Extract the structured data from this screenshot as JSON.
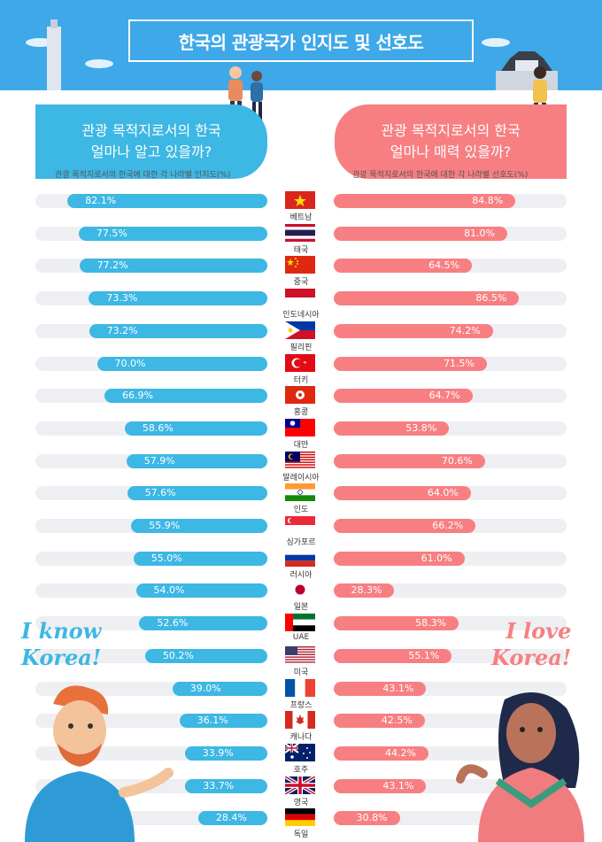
{
  "title": "한국의 관광국가 인지도 및 선호도",
  "left_panel": {
    "heading_line1": "관광 목적지로서의 한국",
    "heading_line2": "얼마나 알고 있을까?",
    "caption": "관광 목적지로서의 한국에 대한 각 나라별 인지도(%)",
    "slogan_line1": "I know",
    "slogan_line2": "Korea!"
  },
  "right_panel": {
    "heading_line1": "관광 목적지로서의 한국",
    "heading_line2": "얼마나 매력 있을까?",
    "caption": "관광 목적지로서의 한국에 대한 각 나라별 선호도(%)",
    "slogan_line1": "I love",
    "slogan_line2": "Korea!"
  },
  "colors": {
    "header": "#3ea8e8",
    "awareness": "#3db7e4",
    "preference": "#f77f82",
    "track": "#eeeff3"
  },
  "chart_data": {
    "type": "bar",
    "categories": [
      "베트남",
      "태국",
      "중국",
      "인도네시아",
      "필리핀",
      "터키",
      "홍콩",
      "대만",
      "말레이시아",
      "인도",
      "싱가포르",
      "러시아",
      "일본",
      "UAE",
      "미국",
      "프랑스",
      "캐나다",
      "호주",
      "영국",
      "독일"
    ],
    "series": [
      {
        "values": [
          82.1,
          77.5,
          77.2,
          73.3,
          73.2,
          70.0,
          66.9,
          58.6,
          57.9,
          57.6,
          55.9,
          55.0,
          54.0,
          52.6,
          50.2,
          39.0,
          36.1,
          33.9,
          33.7,
          28.4
        ]
      },
      {
        "values": [
          84.8,
          81.0,
          64.5,
          86.5,
          74.2,
          71.5,
          64.7,
          53.8,
          70.6,
          64.0,
          66.2,
          61.0,
          28.3,
          58.3,
          55.1,
          43.1,
          42.5,
          44.2,
          43.1,
          30.8
        ]
      }
    ],
    "value_labels_left": [
      "82.1%",
      "77.5%",
      "77.2%",
      "73.3%",
      "73.2%",
      "70.0%",
      "66.9%",
      "58.6%",
      "57.9%",
      "57.6%",
      "55.9%",
      "55.0%",
      "54.0%",
      "52.6%",
      "50.2%",
      "39.0%",
      "36.1%",
      "33.9%",
      "33.7%",
      "28.4%"
    ],
    "value_labels_right": [
      "84.8%",
      "81.0%",
      "64.5%",
      "86.5%",
      "74.2%",
      "71.5%",
      "64.7%",
      "53.8%",
      "70.6%",
      "64.0%",
      "66.2%",
      "61.0%",
      "28.3%",
      "58.3%",
      "55.1%",
      "43.1%",
      "42.5%",
      "44.2%",
      "43.1%",
      "30.8%"
    ],
    "xlim": [
      0,
      100
    ],
    "flag_icons": [
      "vietnam-flag",
      "thailand-flag",
      "china-flag",
      "indonesia-flag",
      "philippines-flag",
      "turkey-flag",
      "hongkong-flag",
      "taiwan-flag",
      "malaysia-flag",
      "india-flag",
      "singapore-flag",
      "russia-flag",
      "japan-flag",
      "uae-flag",
      "usa-flag",
      "france-flag",
      "canada-flag",
      "australia-flag",
      "uk-flag",
      "germany-flag"
    ]
  }
}
